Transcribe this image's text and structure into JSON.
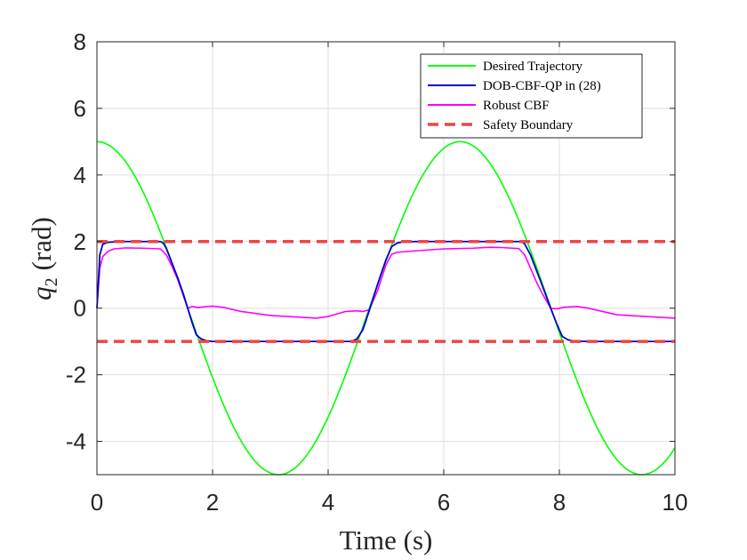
{
  "chart_data": {
    "type": "line",
    "title": "",
    "xlabel": "Time (s)",
    "ylabel_var": "q",
    "ylabel_sub": "2",
    "ylabel_unit": "(rad)",
    "xlim": [
      0,
      10
    ],
    "ylim": [
      -5,
      8
    ],
    "xticks": [
      0,
      2,
      4,
      6,
      8,
      10
    ],
    "xtick_labels": [
      "0",
      "2",
      "4",
      "6",
      "8",
      "10"
    ],
    "yticks": [
      -4,
      -2,
      0,
      2,
      4,
      6,
      8
    ],
    "ytick_labels": [
      "-4",
      "-2",
      "0",
      "2",
      "4",
      "6",
      "8"
    ],
    "grid": true,
    "legend_position": "top-right",
    "series": [
      {
        "name": "Desired Trajectory",
        "color": "#00ff00",
        "style": "solid",
        "function": "5*cos(t)"
      },
      {
        "name": "DOB-CBF-QP in (28)",
        "color": "#0000cc",
        "style": "solid",
        "x": [
          0,
          0.05,
          0.1,
          0.2,
          0.4,
          0.8,
          1.1,
          1.15,
          1.2,
          1.3,
          1.4,
          1.5,
          1.57,
          1.65,
          1.72,
          1.8,
          1.9,
          2.0,
          2.5,
          3.0,
          3.5,
          4.0,
          4.4,
          4.5,
          4.6,
          4.71,
          4.8,
          4.9,
          5.0,
          5.1,
          5.2,
          5.3,
          5.5,
          6.0,
          6.5,
          7.0,
          7.35,
          7.4,
          7.5,
          7.6,
          7.7,
          7.85,
          7.95,
          8.05,
          8.15,
          8.25,
          8.5,
          9.0,
          9.5,
          10.0
        ],
        "y": [
          0,
          1.6,
          1.92,
          1.98,
          2.0,
          2.0,
          2.0,
          1.95,
          1.8,
          1.35,
          0.9,
          0.4,
          0.0,
          -0.45,
          -0.8,
          -0.92,
          -0.98,
          -1.0,
          -1.0,
          -1.0,
          -1.0,
          -1.0,
          -1.0,
          -0.92,
          -0.65,
          -0.08,
          0.42,
          0.95,
          1.45,
          1.85,
          1.96,
          1.99,
          2.0,
          2.0,
          2.0,
          2.0,
          2.0,
          1.93,
          1.6,
          1.15,
          0.7,
          0.0,
          -0.45,
          -0.85,
          -0.95,
          -0.99,
          -1.0,
          -1.0,
          -1.0,
          -1.0
        ]
      },
      {
        "name": "Robust CBF",
        "color": "#ff00ff",
        "style": "solid",
        "x": [
          0,
          0.05,
          0.1,
          0.2,
          0.3,
          0.5,
          0.8,
          1.1,
          1.2,
          1.3,
          1.4,
          1.5,
          1.57,
          1.65,
          1.75,
          1.9,
          2.0,
          2.2,
          2.5,
          3.0,
          3.5,
          3.8,
          4.0,
          4.3,
          4.5,
          4.6,
          4.71,
          4.85,
          5.0,
          5.1,
          5.2,
          5.5,
          6.0,
          6.5,
          6.8,
          7.0,
          7.3,
          7.4,
          7.5,
          7.6,
          7.7,
          7.85,
          7.95,
          8.1,
          8.3,
          8.5,
          9.0,
          9.5,
          10.0
        ],
        "y": [
          0,
          1.2,
          1.55,
          1.72,
          1.78,
          1.81,
          1.8,
          1.78,
          1.6,
          1.25,
          0.85,
          0.35,
          0.0,
          0.05,
          0.02,
          0.05,
          0.06,
          0.02,
          -0.1,
          -0.22,
          -0.27,
          -0.3,
          -0.25,
          -0.1,
          -0.08,
          -0.1,
          -0.05,
          0.5,
          1.3,
          1.62,
          1.68,
          1.72,
          1.78,
          1.8,
          1.83,
          1.82,
          1.79,
          1.6,
          1.2,
          0.8,
          0.45,
          0.0,
          -0.02,
          0.03,
          0.05,
          0.0,
          -0.2,
          -0.25,
          -0.3
        ]
      },
      {
        "name": "Safety Boundary",
        "color": "#ee4444",
        "style": "dashed",
        "levels": [
          2,
          -1
        ]
      }
    ]
  }
}
